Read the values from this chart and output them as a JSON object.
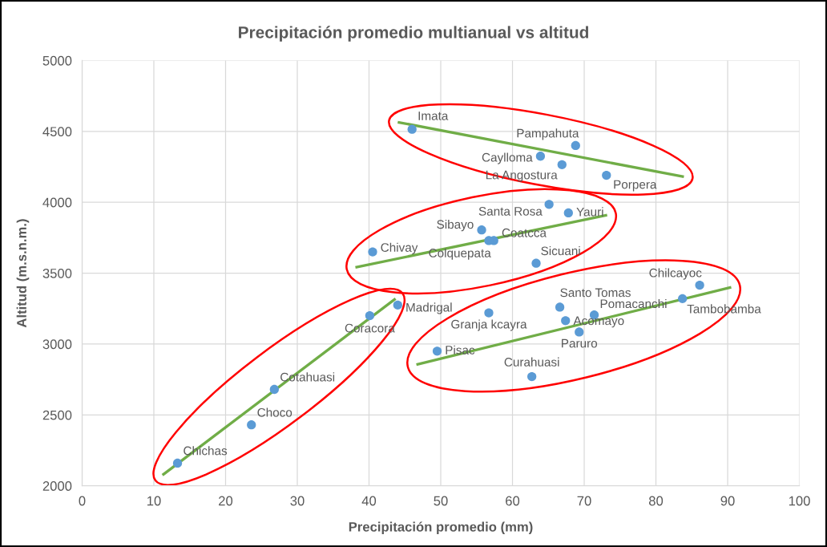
{
  "chart_data": {
    "type": "scatter",
    "title": "Precipitación promedio multianual vs altitud",
    "xlabel": "Precipitación promedio (mm)",
    "ylabel": "Altitud (m.s.n.m.)",
    "xlim": [
      0,
      100
    ],
    "ylim": [
      2000,
      5000
    ],
    "xticks": [
      0,
      10,
      20,
      30,
      40,
      50,
      60,
      70,
      80,
      90,
      100
    ],
    "yticks": [
      2000,
      2500,
      3000,
      3500,
      4000,
      4500,
      5000
    ],
    "grid": true,
    "series": [
      {
        "color": "#5b9bd5",
        "marker": "circle",
        "x": [
          46.0,
          68.8,
          63.9,
          66.9,
          73.1,
          65.1,
          67.8,
          55.7,
          57.4,
          56.7,
          40.5,
          63.3,
          86.1,
          83.7,
          66.6,
          56.7,
          71.4,
          67.4,
          69.3,
          49.5,
          62.7,
          44.0,
          40.1,
          26.8,
          23.6,
          13.3
        ],
        "values": [
          4515,
          4400,
          4325,
          4265,
          4190,
          3985,
          3925,
          3805,
          3730,
          3730,
          3650,
          3570,
          3415,
          3320,
          3260,
          3220,
          3205,
          3165,
          3085,
          2950,
          2770,
          3275,
          3200,
          2680,
          2430,
          2160
        ],
        "value_labels": [
          "Imata",
          "Pampahuta",
          "Caylloma",
          "La Angostura",
          "Porpera",
          "Santa Rosa",
          "Yauri",
          "Sibayo",
          "Coatcca",
          "Colquepata",
          "Chivay",
          "Sicuani",
          "Chilcayoc",
          "Tambobamba",
          "Santo Tomas",
          "Granja kcayra",
          "Pomacanchi",
          "Acomayo",
          "Paruro",
          "Pisac",
          "Curahuasi",
          "Madrigal",
          "Coracora",
          "Cotahuasi",
          "Choco",
          "Chichas"
        ]
      },
      {
        "type": "line",
        "color": "#70ad47",
        "x": [
          44.0,
          83.9
        ],
        "values": [
          4565,
          4180
        ]
      },
      {
        "type": "line",
        "color": "#70ad47",
        "x": [
          38.1,
          73.2
        ],
        "values": [
          3540,
          3910
        ]
      },
      {
        "type": "line",
        "color": "#70ad47",
        "x": [
          46.6,
          90.5
        ],
        "values": [
          2855,
          3400
        ]
      },
      {
        "type": "line",
        "color": "#70ad47",
        "x": [
          11.2,
          43.7
        ],
        "values": [
          2075,
          3320
        ]
      }
    ]
  }
}
